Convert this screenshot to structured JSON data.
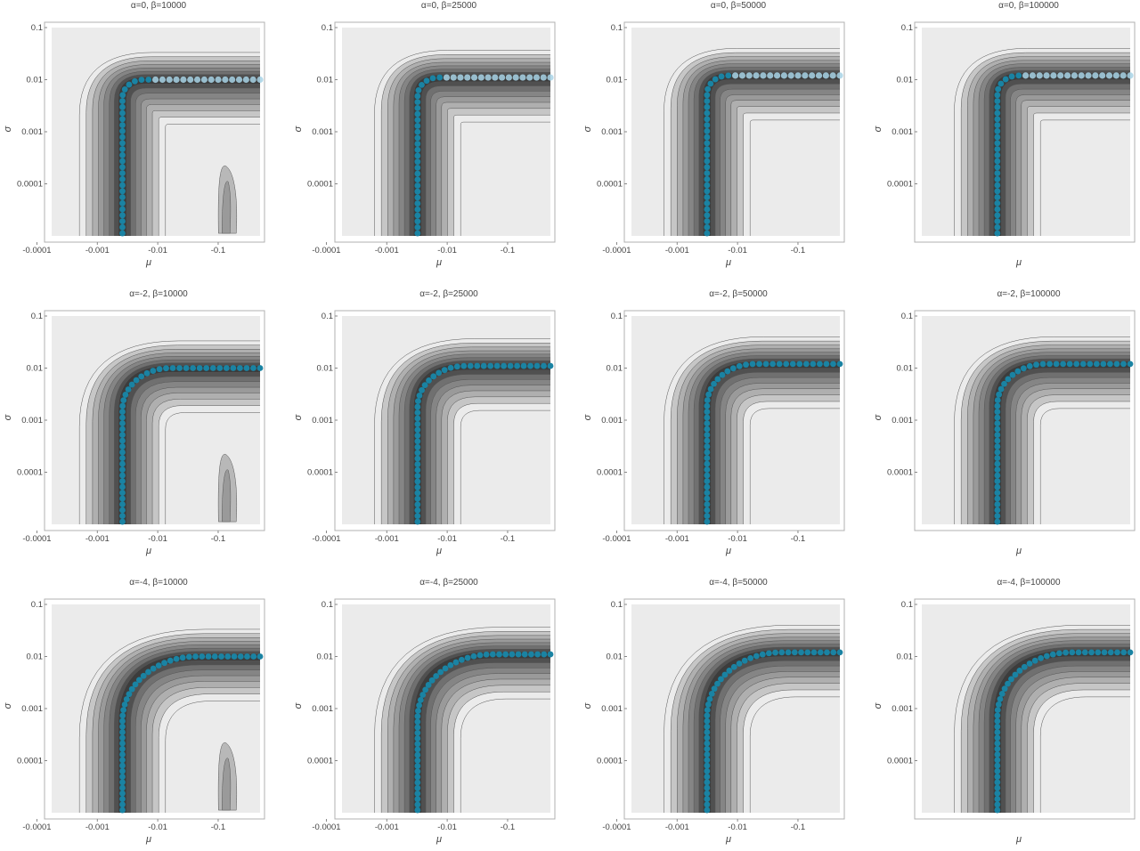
{
  "figure": {
    "rows": [
      {
        "alpha": 0
      },
      {
        "alpha": -2
      },
      {
        "alpha": -4
      }
    ],
    "cols": [
      {
        "beta": 10000
      },
      {
        "beta": 25000
      },
      {
        "beta": 50000
      },
      {
        "beta": 100000
      }
    ]
  },
  "chart_data": [
    {
      "type": "contour",
      "title": "α=0, β=10000",
      "alpha": 0,
      "beta": 10000,
      "xlabel": "μ",
      "ylabel": "σ",
      "xscale": "log",
      "yscale": "log",
      "xticks": [
        "-0.1",
        "-0.01",
        "-0.001",
        "-0.0001"
      ],
      "yticks": [
        "0.1",
        "0.01",
        "0.001",
        "0.0001"
      ],
      "ridge_corner_mu": -0.006,
      "ridge_plateau_sigma": 0.01,
      "secondary_blob": true
    },
    {
      "type": "contour",
      "title": "α=0, β=25000",
      "alpha": 0,
      "beta": 25000,
      "xlabel": "μ",
      "ylabel": "σ",
      "xscale": "log",
      "yscale": "log",
      "xticks": [
        "-0.1",
        "-0.01",
        "-0.001",
        "-0.0001"
      ],
      "yticks": [
        "0.1",
        "0.01",
        "0.001",
        "0.0001"
      ],
      "ridge_corner_mu": -0.005,
      "ridge_plateau_sigma": 0.011,
      "secondary_blob": false
    },
    {
      "type": "contour",
      "title": "α=0, β=50000",
      "alpha": 0,
      "beta": 50000,
      "xlabel": "μ",
      "ylabel": "σ",
      "xscale": "log",
      "yscale": "log",
      "xticks": [
        "-0.1",
        "-0.01",
        "-0.001",
        "-0.0001"
      ],
      "yticks": [
        "0.1",
        "0.01",
        "0.001",
        "0.0001"
      ],
      "ridge_corner_mu": -0.005,
      "ridge_plateau_sigma": 0.012,
      "secondary_blob": false
    },
    {
      "type": "contour",
      "title": "α=0, β=100000",
      "alpha": 0,
      "beta": 100000,
      "xlabel": "μ",
      "ylabel": "σ",
      "xscale": "log",
      "yscale": "log",
      "xticks": [
        "-0.1",
        "-0.01",
        "-0.001",
        "-0.0001"
      ],
      "yticks": [
        "0.1",
        "0.01",
        "0.001",
        "0.0001"
      ],
      "ridge_corner_mu": -0.005,
      "ridge_plateau_sigma": 0.012,
      "secondary_blob": false
    },
    {
      "type": "contour",
      "title": "α=-2, β=10000",
      "alpha": -2,
      "beta": 10000,
      "xlabel": "μ",
      "ylabel": "σ",
      "xscale": "log",
      "yscale": "log",
      "xticks": [
        "-0.1",
        "-0.01",
        "-0.001",
        "-0.0001"
      ],
      "yticks": [
        "0.1",
        "0.01",
        "0.001",
        "0.0001"
      ],
      "ridge_corner_mu": -0.006,
      "ridge_plateau_sigma": 0.01,
      "secondary_blob": true
    },
    {
      "type": "contour",
      "title": "α=-2, β=25000",
      "alpha": -2,
      "beta": 25000,
      "xlabel": "μ",
      "ylabel": "σ",
      "xscale": "log",
      "yscale": "log",
      "xticks": [
        "-0.1",
        "-0.01",
        "-0.001",
        "-0.0001"
      ],
      "yticks": [
        "0.1",
        "0.01",
        "0.001",
        "0.0001"
      ],
      "ridge_corner_mu": -0.005,
      "ridge_plateau_sigma": 0.011,
      "secondary_blob": false
    },
    {
      "type": "contour",
      "title": "α=-2, β=50000",
      "alpha": -2,
      "beta": 50000,
      "xlabel": "μ",
      "ylabel": "σ",
      "xscale": "log",
      "yscale": "log",
      "xticks": [
        "-0.1",
        "-0.01",
        "-0.001",
        "-0.0001"
      ],
      "yticks": [
        "0.1",
        "0.01",
        "0.001",
        "0.0001"
      ],
      "ridge_corner_mu": -0.005,
      "ridge_plateau_sigma": 0.012,
      "secondary_blob": false
    },
    {
      "type": "contour",
      "title": "α=-2, β=100000",
      "alpha": -2,
      "beta": 100000,
      "xlabel": "μ",
      "ylabel": "σ",
      "xscale": "log",
      "yscale": "log",
      "xticks": [
        "-0.1",
        "-0.01",
        "-0.001",
        "-0.0001"
      ],
      "yticks": [
        "0.1",
        "0.01",
        "0.001",
        "0.0001"
      ],
      "ridge_corner_mu": -0.005,
      "ridge_plateau_sigma": 0.012,
      "secondary_blob": false
    },
    {
      "type": "contour",
      "title": "α=-4, β=10000",
      "alpha": -4,
      "beta": 10000,
      "xlabel": "μ",
      "ylabel": "σ",
      "xscale": "log",
      "yscale": "log",
      "xticks": [
        "-0.1",
        "-0.01",
        "-0.001",
        "-0.0001"
      ],
      "yticks": [
        "0.1",
        "0.01",
        "0.001",
        "0.0001"
      ],
      "ridge_corner_mu": -0.006,
      "ridge_plateau_sigma": 0.01,
      "secondary_blob": true
    },
    {
      "type": "contour",
      "title": "α=-4, β=25000",
      "alpha": -4,
      "beta": 25000,
      "xlabel": "μ",
      "ylabel": "σ",
      "xscale": "log",
      "yscale": "log",
      "xticks": [
        "-0.1",
        "-0.01",
        "-0.001",
        "-0.0001"
      ],
      "yticks": [
        "0.1",
        "0.01",
        "0.001",
        "0.0001"
      ],
      "ridge_corner_mu": -0.005,
      "ridge_plateau_sigma": 0.011,
      "secondary_blob": false
    },
    {
      "type": "contour",
      "title": "α=-4, β=50000",
      "alpha": -4,
      "beta": 50000,
      "xlabel": "μ",
      "ylabel": "σ",
      "xscale": "log",
      "yscale": "log",
      "xticks": [
        "-0.1",
        "-0.01",
        "-0.001",
        "-0.0001"
      ],
      "yticks": [
        "0.1",
        "0.01",
        "0.001",
        "0.0001"
      ],
      "ridge_corner_mu": -0.005,
      "ridge_plateau_sigma": 0.012,
      "secondary_blob": false
    },
    {
      "type": "contour",
      "title": "α=-4, β=100000",
      "alpha": -4,
      "beta": 100000,
      "xlabel": "μ",
      "ylabel": "σ",
      "xscale": "log",
      "yscale": "log",
      "xticks": [
        "-0.1",
        "-0.01",
        "-0.001",
        "-0.0001"
      ],
      "yticks": [
        "0.1",
        "0.01",
        "0.001",
        "0.0001"
      ],
      "ridge_corner_mu": -0.005,
      "ridge_plateau_sigma": 0.012,
      "secondary_blob": false
    }
  ],
  "colors": {
    "background": "#ebebeb",
    "frame": "#b0b0b0",
    "contour_levels": [
      "#ebebeb",
      "#c6c6c6",
      "#afafaf",
      "#9a9a9a",
      "#858585",
      "#707070",
      "#505050",
      "#3c3c3c"
    ],
    "contour_line": "#555555",
    "path_marker": "#1a83a3",
    "path_marker_light": "#a8d4e6"
  }
}
